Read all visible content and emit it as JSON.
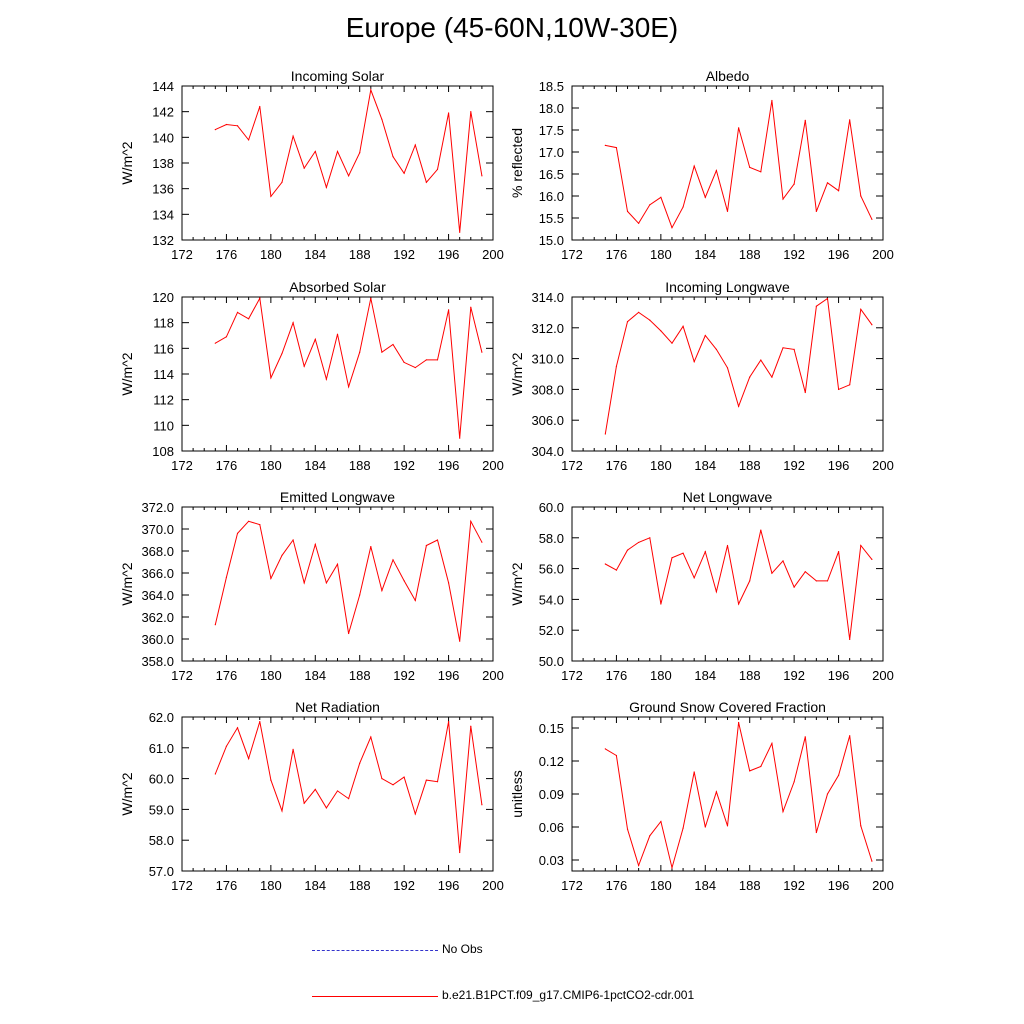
{
  "title": "Europe (45-60N,10W-30E)",
  "colors": {
    "series": "#ff0000",
    "no_obs": "#3333cc",
    "axis": "#000000"
  },
  "legend": [
    {
      "label": "No Obs",
      "color": "#3333cc",
      "style": "dashed"
    },
    {
      "label": "b.e21.B1PCT.f09_g17.CMIP6-1pctCO2-cdr.001",
      "color": "#ff0000",
      "style": "solid"
    }
  ],
  "chart_data": [
    {
      "type": "line",
      "title": "Incoming Solar",
      "ylabel": "W/m^2",
      "xlim": [
        172,
        200
      ],
      "xticks": [
        172,
        176,
        180,
        184,
        188,
        192,
        196,
        200
      ],
      "ylim": [
        132,
        144
      ],
      "yticks": [
        132,
        134,
        136,
        138,
        140,
        142,
        144
      ],
      "ytick_decimals": 0,
      "x": [
        175,
        176,
        177,
        178,
        179,
        180,
        181,
        182,
        183,
        184,
        185,
        186,
        187,
        188,
        189,
        190,
        191,
        192,
        193,
        194,
        195,
        196,
        197,
        198,
        199
      ],
      "series": [
        {
          "name": "b.e21.B1PCT.f09_g17.CMIP6-1pctCO2-cdr.001",
          "values": [
            140.6,
            141.0,
            140.9,
            139.8,
            142.4,
            135.4,
            136.5,
            140.1,
            137.6,
            138.9,
            136.1,
            138.9,
            137.0,
            138.8,
            143.7,
            141.4,
            138.5,
            137.2,
            139.4,
            136.5,
            137.5,
            141.9,
            132.6,
            142.0,
            137.0
          ]
        }
      ]
    },
    {
      "type": "line",
      "title": "Albedo",
      "ylabel": "% reflected",
      "xlim": [
        172,
        200
      ],
      "xticks": [
        172,
        176,
        180,
        184,
        188,
        192,
        196,
        200
      ],
      "ylim": [
        15.0,
        18.5
      ],
      "yticks": [
        15.0,
        15.5,
        16.0,
        16.5,
        17.0,
        17.5,
        18.0,
        18.5
      ],
      "ytick_decimals": 1,
      "x": [
        175,
        176,
        177,
        178,
        179,
        180,
        181,
        182,
        183,
        184,
        185,
        186,
        187,
        188,
        189,
        190,
        191,
        192,
        193,
        194,
        195,
        196,
        197,
        198,
        199
      ],
      "series": [
        {
          "name": "b.e21.B1PCT.f09_g17.CMIP6-1pctCO2-cdr.001",
          "values": [
            17.15,
            17.1,
            15.65,
            15.38,
            15.8,
            15.97,
            15.28,
            15.75,
            16.68,
            15.97,
            16.58,
            15.65,
            17.55,
            16.65,
            16.55,
            18.17,
            15.93,
            16.27,
            17.72,
            15.65,
            16.3,
            16.12,
            17.73,
            16.0,
            15.47
          ]
        }
      ]
    },
    {
      "type": "line",
      "title": "Absorbed Solar",
      "ylabel": "W/m^2",
      "xlim": [
        172,
        200
      ],
      "xticks": [
        172,
        176,
        180,
        184,
        188,
        192,
        196,
        200
      ],
      "ylim": [
        108,
        120
      ],
      "yticks": [
        108,
        110,
        112,
        114,
        116,
        118,
        120
      ],
      "ytick_decimals": 0,
      "x": [
        175,
        176,
        177,
        178,
        179,
        180,
        181,
        182,
        183,
        184,
        185,
        186,
        187,
        188,
        189,
        190,
        191,
        192,
        193,
        194,
        195,
        196,
        197,
        198,
        199
      ],
      "series": [
        {
          "name": "b.e21.B1PCT.f09_g17.CMIP6-1pctCO2-cdr.001",
          "values": [
            116.4,
            116.9,
            118.8,
            118.3,
            119.9,
            113.7,
            115.6,
            118.0,
            114.6,
            116.7,
            113.6,
            117.1,
            113.0,
            115.7,
            119.9,
            115.7,
            116.3,
            114.9,
            114.5,
            115.1,
            115.1,
            119.0,
            109.0,
            119.2,
            115.7
          ]
        }
      ]
    },
    {
      "type": "line",
      "title": "Incoming Longwave",
      "ylabel": "W/m^2",
      "xlim": [
        172,
        200
      ],
      "xticks": [
        172,
        176,
        180,
        184,
        188,
        192,
        196,
        200
      ],
      "ylim": [
        304,
        314
      ],
      "yticks": [
        304,
        306,
        308,
        310,
        312,
        314
      ],
      "ytick_decimals": 1,
      "x": [
        175,
        176,
        177,
        178,
        179,
        180,
        181,
        182,
        183,
        184,
        185,
        186,
        187,
        188,
        189,
        190,
        191,
        192,
        193,
        194,
        195,
        196,
        197,
        198,
        199
      ],
      "series": [
        {
          "name": "b.e21.B1PCT.f09_g17.CMIP6-1pctCO2-cdr.001",
          "values": [
            305.1,
            309.5,
            312.4,
            313.0,
            312.5,
            311.8,
            311.0,
            312.1,
            309.8,
            311.5,
            310.6,
            309.4,
            306.9,
            308.8,
            309.9,
            308.8,
            310.7,
            310.6,
            307.8,
            313.4,
            313.9,
            308.0,
            308.3,
            313.2,
            312.2
          ]
        }
      ]
    },
    {
      "type": "line",
      "title": "Emitted Longwave",
      "ylabel": "W/m^2",
      "xlim": [
        172,
        200
      ],
      "xticks": [
        172,
        176,
        180,
        184,
        188,
        192,
        196,
        200
      ],
      "ylim": [
        358,
        372
      ],
      "yticks": [
        358,
        360,
        362,
        364,
        366,
        368,
        370,
        372
      ],
      "ytick_decimals": 1,
      "x": [
        175,
        176,
        177,
        178,
        179,
        180,
        181,
        182,
        183,
        184,
        185,
        186,
        187,
        188,
        189,
        190,
        191,
        192,
        193,
        194,
        195,
        196,
        197,
        198,
        199
      ],
      "series": [
        {
          "name": "b.e21.B1PCT.f09_g17.CMIP6-1pctCO2-cdr.001",
          "values": [
            361.3,
            365.6,
            369.6,
            370.7,
            370.4,
            365.5,
            367.6,
            369.0,
            365.1,
            368.6,
            365.1,
            366.8,
            360.5,
            364.0,
            368.4,
            364.4,
            367.2,
            365.3,
            363.5,
            368.5,
            369.0,
            365.1,
            359.8,
            370.7,
            368.8
          ]
        }
      ]
    },
    {
      "type": "line",
      "title": "Net Longwave",
      "ylabel": "W/m^2",
      "xlim": [
        172,
        200
      ],
      "xticks": [
        172,
        176,
        180,
        184,
        188,
        192,
        196,
        200
      ],
      "ylim": [
        50,
        60
      ],
      "yticks": [
        50,
        52,
        54,
        56,
        58,
        60
      ],
      "ytick_decimals": 1,
      "x": [
        175,
        176,
        177,
        178,
        179,
        180,
        181,
        182,
        183,
        184,
        185,
        186,
        187,
        188,
        189,
        190,
        191,
        192,
        193,
        194,
        195,
        196,
        197,
        198,
        199
      ],
      "series": [
        {
          "name": "b.e21.B1PCT.f09_g17.CMIP6-1pctCO2-cdr.001",
          "values": [
            56.3,
            55.9,
            57.2,
            57.7,
            58.0,
            53.7,
            56.7,
            57.0,
            55.4,
            57.1,
            54.5,
            57.5,
            53.7,
            55.2,
            58.5,
            55.7,
            56.5,
            54.8,
            55.8,
            55.2,
            55.2,
            57.1,
            51.4,
            57.5,
            56.6
          ]
        }
      ]
    },
    {
      "type": "line",
      "title": "Net Radiation",
      "ylabel": "W/m^2",
      "xlim": [
        172,
        200
      ],
      "xticks": [
        172,
        176,
        180,
        184,
        188,
        192,
        196,
        200
      ],
      "ylim": [
        57,
        62
      ],
      "yticks": [
        57,
        58,
        59,
        60,
        61,
        62
      ],
      "ytick_decimals": 1,
      "x": [
        175,
        176,
        177,
        178,
        179,
        180,
        181,
        182,
        183,
        184,
        185,
        186,
        187,
        188,
        189,
        190,
        191,
        192,
        193,
        194,
        195,
        196,
        197,
        198,
        199
      ],
      "series": [
        {
          "name": "b.e21.B1PCT.f09_g17.CMIP6-1pctCO2-cdr.001",
          "values": [
            60.15,
            61.05,
            61.65,
            60.65,
            61.85,
            59.95,
            58.95,
            60.95,
            59.2,
            59.65,
            59.05,
            59.6,
            59.35,
            60.5,
            61.35,
            60.0,
            59.8,
            60.05,
            58.85,
            59.95,
            59.9,
            61.85,
            57.6,
            61.7,
            59.15
          ]
        }
      ]
    },
    {
      "type": "line",
      "title": "Ground Snow Covered Fraction",
      "ylabel": "unitless",
      "xlim": [
        172,
        200
      ],
      "xticks": [
        172,
        176,
        180,
        184,
        188,
        192,
        196,
        200
      ],
      "ylim": [
        0.02,
        0.16
      ],
      "yticks": [
        0.03,
        0.06,
        0.09,
        0.12,
        0.15
      ],
      "ytick_decimals": 2,
      "x": [
        175,
        176,
        177,
        178,
        179,
        180,
        181,
        182,
        183,
        184,
        185,
        186,
        187,
        188,
        189,
        190,
        191,
        192,
        193,
        194,
        195,
        196,
        197,
        198,
        199
      ],
      "series": [
        {
          "name": "b.e21.B1PCT.f09_g17.CMIP6-1pctCO2-cdr.001",
          "values": [
            0.131,
            0.125,
            0.058,
            0.025,
            0.052,
            0.065,
            0.023,
            0.059,
            0.11,
            0.06,
            0.092,
            0.061,
            0.155,
            0.111,
            0.115,
            0.136,
            0.074,
            0.101,
            0.142,
            0.055,
            0.09,
            0.107,
            0.143,
            0.061,
            0.029
          ]
        }
      ]
    }
  ]
}
